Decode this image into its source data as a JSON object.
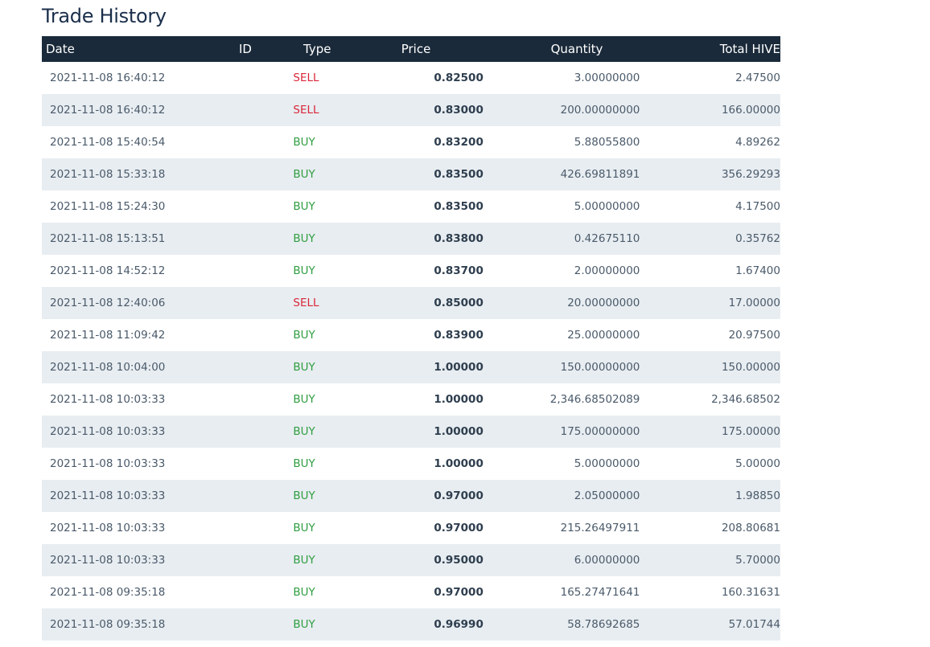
{
  "page": {
    "title": "Trade History"
  },
  "table": {
    "columns": [
      "Date",
      "ID",
      "Type",
      "Price",
      "Quantity",
      "Total HIVE"
    ],
    "rows": [
      {
        "date": "2021-11-08 16:40:12",
        "id": "",
        "type": "SELL",
        "price": "0.82500",
        "quantity": "3.00000000",
        "total": "2.47500"
      },
      {
        "date": "2021-11-08 16:40:12",
        "id": "",
        "type": "SELL",
        "price": "0.83000",
        "quantity": "200.00000000",
        "total": "166.00000"
      },
      {
        "date": "2021-11-08 15:40:54",
        "id": "",
        "type": "BUY",
        "price": "0.83200",
        "quantity": "5.88055800",
        "total": "4.89262"
      },
      {
        "date": "2021-11-08 15:33:18",
        "id": "",
        "type": "BUY",
        "price": "0.83500",
        "quantity": "426.69811891",
        "total": "356.29293"
      },
      {
        "date": "2021-11-08 15:24:30",
        "id": "",
        "type": "BUY",
        "price": "0.83500",
        "quantity": "5.00000000",
        "total": "4.17500"
      },
      {
        "date": "2021-11-08 15:13:51",
        "id": "",
        "type": "BUY",
        "price": "0.83800",
        "quantity": "0.42675110",
        "total": "0.35762"
      },
      {
        "date": "2021-11-08 14:52:12",
        "id": "",
        "type": "BUY",
        "price": "0.83700",
        "quantity": "2.00000000",
        "total": "1.67400"
      },
      {
        "date": "2021-11-08 12:40:06",
        "id": "",
        "type": "SELL",
        "price": "0.85000",
        "quantity": "20.00000000",
        "total": "17.00000"
      },
      {
        "date": "2021-11-08 11:09:42",
        "id": "",
        "type": "BUY",
        "price": "0.83900",
        "quantity": "25.00000000",
        "total": "20.97500"
      },
      {
        "date": "2021-11-08 10:04:00",
        "id": "",
        "type": "BUY",
        "price": "1.00000",
        "quantity": "150.00000000",
        "total": "150.00000"
      },
      {
        "date": "2021-11-08 10:03:33",
        "id": "",
        "type": "BUY",
        "price": "1.00000",
        "quantity": "2,346.68502089",
        "total": "2,346.68502"
      },
      {
        "date": "2021-11-08 10:03:33",
        "id": "",
        "type": "BUY",
        "price": "1.00000",
        "quantity": "175.00000000",
        "total": "175.00000"
      },
      {
        "date": "2021-11-08 10:03:33",
        "id": "",
        "type": "BUY",
        "price": "1.00000",
        "quantity": "5.00000000",
        "total": "5.00000"
      },
      {
        "date": "2021-11-08 10:03:33",
        "id": "",
        "type": "BUY",
        "price": "0.97000",
        "quantity": "2.05000000",
        "total": "1.98850"
      },
      {
        "date": "2021-11-08 10:03:33",
        "id": "",
        "type": "BUY",
        "price": "0.97000",
        "quantity": "215.26497911",
        "total": "208.80681"
      },
      {
        "date": "2021-11-08 10:03:33",
        "id": "",
        "type": "BUY",
        "price": "0.95000",
        "quantity": "6.00000000",
        "total": "5.70000"
      },
      {
        "date": "2021-11-08 09:35:18",
        "id": "",
        "type": "BUY",
        "price": "0.97000",
        "quantity": "165.27471641",
        "total": "160.31631"
      },
      {
        "date": "2021-11-08 09:35:18",
        "id": "",
        "type": "BUY",
        "price": "0.96990",
        "quantity": "58.78692685",
        "total": "57.01744"
      }
    ]
  },
  "colors": {
    "header_bg": "#1a2a3a",
    "alt_row_bg": "#e8edf1",
    "buy": "#2f9e41",
    "sell": "#d9263a",
    "title": "#1b2f4b"
  }
}
